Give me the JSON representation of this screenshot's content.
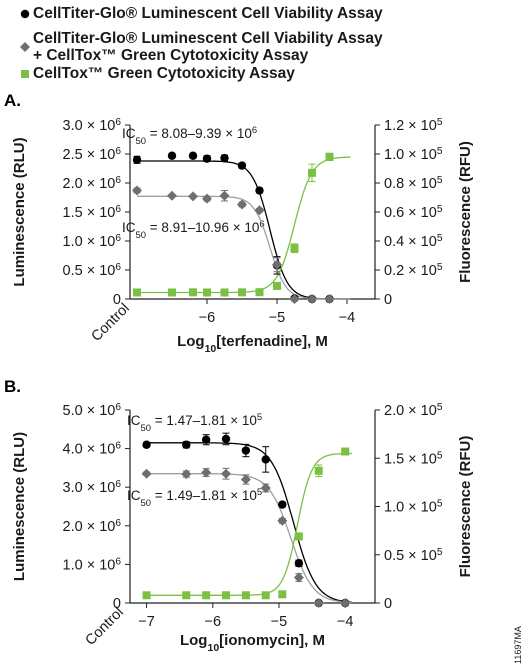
{
  "legend": [
    {
      "lines": [
        "CellTiter-Glo® Luminescent Cell Viability Assay"
      ],
      "marker": "circle",
      "color": "#000000"
    },
    {
      "lines": [
        "CellTiter-Glo® Luminescent Cell Viability Assay",
        "+ CellTox™ Green Cytotoxicity Assay"
      ],
      "marker": "diamond",
      "color": "#6d6e71"
    },
    {
      "lines": [
        "CellTox™ Green Cytotoxicity Assay"
      ],
      "marker": "square",
      "color": "#7ac143"
    }
  ],
  "figure_code": "11697MA",
  "colors": {
    "black_series": "#000000",
    "gray_series": "#6d6e71",
    "gray_curve": "#9aa0aa",
    "green_series": "#7ac143"
  },
  "chart_data": [
    {
      "panel": "A.",
      "type": "scatter",
      "xlabel": "Log10[terfenadine], M",
      "xlabel_parts": {
        "pre": "Log",
        "sub": "10",
        "post": "[terfenadine], M"
      },
      "xlim": [
        -7.1,
        -3.6
      ],
      "xticks": [
        -6,
        -5,
        -4
      ],
      "xtick_labels": [
        "−6",
        "−5",
        "−4"
      ],
      "control_label": "Control",
      "ylabel_left": "Luminescence (RLU)",
      "ylabel_right": "Fluorescence (RFU)",
      "ylim_left": [
        0,
        3000000
      ],
      "ylim_right": [
        0,
        120000
      ],
      "yticks_left": [
        "0",
        "0.5 × 10⁶",
        "1.0 × 10⁶",
        "1.5 × 10⁶",
        "2.0 × 10⁶",
        "2.5 × 10⁶",
        "3.0 × 10⁶"
      ],
      "yticks_right": [
        "0",
        "0.2 × 10⁵",
        "0.4 × 10⁵",
        "0.6 × 10⁵",
        "0.8 × 10⁵",
        "1.0 × 10⁵",
        "1.2 × 10⁵"
      ],
      "annotations": [
        {
          "text": "IC₅₀ = 8.08–9.39 × 10⁶",
          "pre": "IC",
          "sub": "50",
          "post": " = 8.08–9.39 × 10",
          "sup": "6"
        },
        {
          "text": "IC₅₀ = 8.91–10.96 × 10⁶",
          "pre": "IC",
          "sub": "50",
          "post": " = 8.91–10.96 × 10",
          "sup": "6"
        }
      ],
      "series": [
        {
          "marker": "circle",
          "axis": "left",
          "color": "#000000",
          "x": [
            -7.0,
            -6.5,
            -6.2,
            -6.0,
            -5.75,
            -5.5,
            -5.25,
            -5.0,
            -4.75,
            -4.5,
            -4.25
          ],
          "y": [
            2400000,
            2470000,
            2470000,
            2420000,
            2430000,
            2300000,
            1870000,
            580000,
            10000,
            0,
            0
          ],
          "err": [
            60000,
            30000,
            30000,
            50000,
            50000,
            40000,
            40000,
            150000,
            10000,
            0,
            0
          ],
          "fit": {
            "top": 2380000,
            "bottom": 0,
            "logIC50": -5.1,
            "hill": 3.5
          }
        },
        {
          "marker": "diamond",
          "axis": "left",
          "color": "#6d6e71",
          "x": [
            -7.0,
            -6.5,
            -6.2,
            -6.0,
            -5.75,
            -5.5,
            -5.25,
            -5.0,
            -4.75,
            -4.5,
            -4.25
          ],
          "y": [
            1870000,
            1780000,
            1770000,
            1730000,
            1780000,
            1630000,
            1530000,
            590000,
            0,
            0,
            0
          ],
          "err": [
            40000,
            20000,
            20000,
            40000,
            90000,
            40000,
            30000,
            120000,
            0,
            0,
            0
          ],
          "fit": {
            "top": 1770000,
            "bottom": 0,
            "logIC50": -5.1,
            "hill": 3.8
          }
        },
        {
          "marker": "square",
          "axis": "right",
          "color": "#7ac143",
          "x": [
            -7.0,
            -6.5,
            -6.2,
            -6.0,
            -5.75,
            -5.5,
            -5.25,
            -5.0,
            -4.75,
            -4.5,
            -4.25
          ],
          "y": [
            4500,
            4500,
            4600,
            4500,
            4500,
            4600,
            4700,
            9000,
            35000,
            87000,
            98000
          ],
          "err": [
            500,
            500,
            500,
            500,
            500,
            500,
            500,
            1500,
            3000,
            6000,
            2500
          ],
          "fit": {
            "top": 98000,
            "bottom": 4500,
            "logIC50": -4.75,
            "hill": 3.5
          }
        }
      ]
    },
    {
      "panel": "B.",
      "type": "scatter",
      "xlabel": "Log10[ionomycin], M",
      "xlabel_parts": {
        "pre": "Log",
        "sub": "10",
        "post": "[ionomycin], M"
      },
      "xlim": [
        -7.25,
        -3.55
      ],
      "xticks": [
        -7,
        -6,
        -5,
        -4
      ],
      "xtick_labels": [
        "−7",
        "−6",
        "−5",
        "−4"
      ],
      "control_label": "Control",
      "ylabel_left": "Luminescence (RLU)",
      "ylabel_right": "Fluorescence (RFU)",
      "ylim_left": [
        0,
        5000000
      ],
      "ylim_right": [
        0,
        200000
      ],
      "yticks_left": [
        "0",
        "1.0 × 10⁶",
        "2.0 × 10⁶",
        "3.0 × 10⁶",
        "4.0 × 10⁶",
        "5.0 × 10⁶"
      ],
      "yticks_right": [
        "0",
        "0.5 × 10⁵",
        "1.0 × 10⁵",
        "1.5 × 10⁵",
        "2.0 × 10⁵"
      ],
      "annotations": [
        {
          "text": "IC₅₀ = 1.47–1.81 × 10⁵",
          "pre": "IC",
          "sub": "50",
          "post": " = 1.47–1.81 × 10",
          "sup": "5"
        },
        {
          "text": "IC₅₀ = 1.49–1.81 × 10⁵",
          "pre": "IC",
          "sub": "50",
          "post": " = 1.49–1.81 × 10",
          "sup": "5"
        }
      ],
      "series": [
        {
          "marker": "circle",
          "axis": "left",
          "color": "#000000",
          "x": [
            -7.0,
            -6.4,
            -6.1,
            -5.8,
            -5.5,
            -5.2,
            -4.95,
            -4.7,
            -4.4,
            -4.0
          ],
          "y": [
            4100000,
            4100000,
            4230000,
            4250000,
            3950000,
            3720000,
            2550000,
            1030000,
            0,
            0
          ],
          "err": [
            50000,
            80000,
            130000,
            150000,
            160000,
            330000,
            60000,
            80000,
            0,
            0
          ],
          "fit": {
            "top": 4150000,
            "bottom": 0,
            "logIC50": -4.78,
            "hill": 2.6
          }
        },
        {
          "marker": "diamond",
          "axis": "left",
          "color": "#6d6e71",
          "x": [
            -7.0,
            -6.4,
            -6.1,
            -5.8,
            -5.5,
            -5.2,
            -4.95,
            -4.7,
            -4.4,
            -4.0
          ],
          "y": [
            3350000,
            3340000,
            3380000,
            3350000,
            3200000,
            2980000,
            2130000,
            660000,
            0,
            0
          ],
          "err": [
            40000,
            80000,
            100000,
            140000,
            120000,
            100000,
            60000,
            100000,
            0,
            0
          ],
          "fit": {
            "top": 3350000,
            "bottom": 0,
            "logIC50": -4.82,
            "hill": 2.6
          }
        },
        {
          "marker": "square",
          "axis": "right",
          "color": "#7ac143",
          "x": [
            -7.0,
            -6.4,
            -6.1,
            -5.8,
            -5.5,
            -5.2,
            -4.95,
            -4.7,
            -4.4,
            -4.0
          ],
          "y": [
            8000,
            8000,
            8000,
            8000,
            8000,
            8000,
            9000,
            69000,
            137000,
            157000
          ],
          "err": [
            500,
            500,
            500,
            500,
            500,
            500,
            1000,
            3000,
            6000,
            3500
          ],
          "fit": {
            "top": 155000,
            "bottom": 8000,
            "logIC50": -4.72,
            "hill": 4.0
          }
        }
      ]
    }
  ]
}
